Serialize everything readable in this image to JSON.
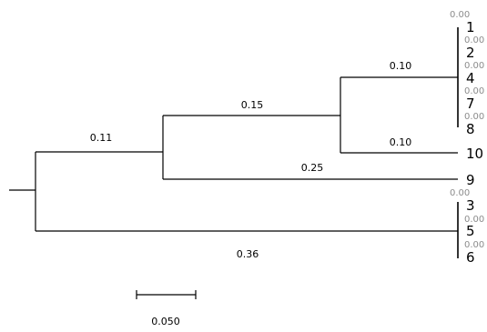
{
  "tree": {
    "branch_lengths": {
      "clade_1_2_4_7_8": "0.10",
      "taxon_10": "0.10",
      "clade_with_10": "0.15",
      "taxon_9": "0.25",
      "ingroup": "0.11",
      "clade_3_5_6": "0.36"
    },
    "zero_length_label": "0.00",
    "taxa": {
      "t1": "1",
      "t2": "2",
      "t4": "4",
      "t7": "7",
      "t8": "8",
      "t10": "10",
      "t9": "9",
      "t3": "3",
      "t5": "5",
      "t6": "6"
    }
  },
  "scale": {
    "label": "0.050"
  }
}
